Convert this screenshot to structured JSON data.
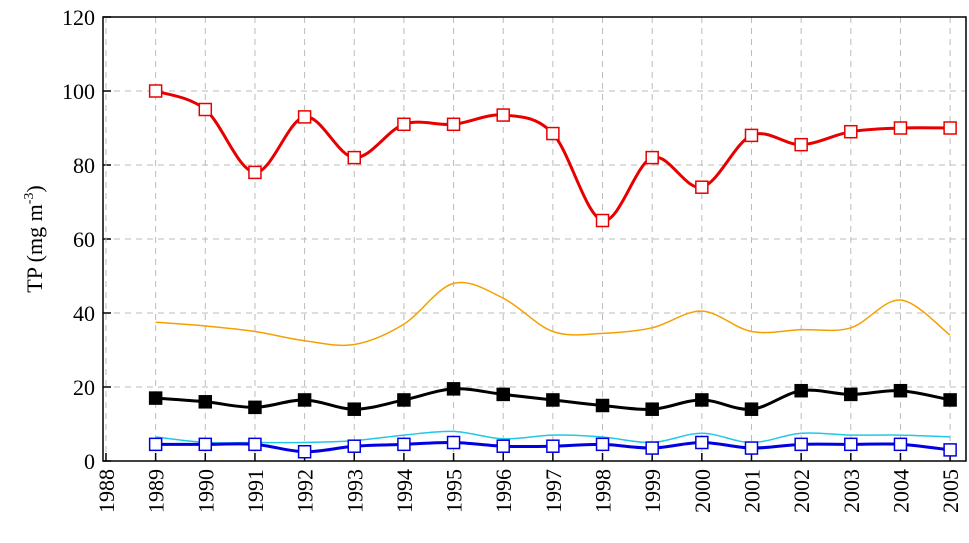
{
  "chart_data": {
    "type": "line",
    "y_label": {
      "text": "TP (mg m",
      "superscript": "-3",
      "suffix": ")"
    },
    "x": [
      1989,
      1990,
      1991,
      1992,
      1993,
      1994,
      1995,
      1996,
      1997,
      1998,
      1999,
      2000,
      2001,
      2002,
      2003,
      2004,
      2005
    ],
    "xlim": [
      1987.94,
      2005.32
    ],
    "xticks": [
      1988,
      1989,
      1990,
      1991,
      1992,
      1993,
      1994,
      1995,
      1996,
      1997,
      1998,
      1999,
      2000,
      2001,
      2002,
      2003,
      2004,
      2005
    ],
    "ylim": [
      0,
      120
    ],
    "yticks": [
      0,
      20,
      40,
      60,
      80,
      100,
      120
    ],
    "grid": true,
    "smooth": true,
    "series": [
      {
        "color": "#e80000",
        "marker": "open-square",
        "line_width": 3,
        "values": [
          100,
          95,
          78,
          93,
          82,
          91,
          91,
          93.5,
          88.5,
          65,
          82,
          74,
          88,
          85.5,
          89,
          90,
          90
        ]
      },
      {
        "color": "#f5a000",
        "marker": "none",
        "line_width": 1.5,
        "values": [
          37.5,
          36.5,
          35,
          32.5,
          31.5,
          37,
          48,
          44,
          35,
          34.5,
          36,
          40.5,
          35,
          35.5,
          36,
          43.5,
          34
        ]
      },
      {
        "color": "#000000",
        "marker": "filled-square",
        "line_width": 3,
        "values": [
          17,
          16,
          14.5,
          16.5,
          14,
          16.5,
          19.5,
          18,
          16.5,
          15,
          14,
          16.5,
          14,
          19,
          18,
          19,
          16.5
        ]
      },
      {
        "color": "#20c8e8",
        "marker": "none",
        "line_width": 1.5,
        "values": [
          6.5,
          5,
          5,
          5,
          5.5,
          7,
          8,
          6,
          7,
          6.5,
          5,
          7.5,
          5,
          7.5,
          7,
          7,
          6.5
        ]
      },
      {
        "color": "#0000e0",
        "marker": "open-square",
        "line_width": 3,
        "values": [
          4.5,
          4.5,
          4.5,
          2.5,
          4,
          4.5,
          5,
          4,
          4,
          4.5,
          3.5,
          5,
          3.5,
          4.5,
          4.5,
          4.5,
          3
        ]
      }
    ]
  }
}
